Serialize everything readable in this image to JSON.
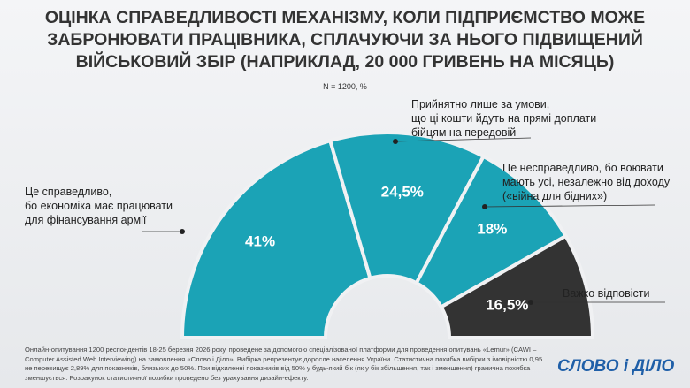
{
  "chart_data": {
    "type": "pie",
    "semicircle": true,
    "title": "ОЦІНКА СПРАВЕДЛИВОСТІ МЕХАНІЗМУ, КОЛИ ПІДПРИЄМСТВО МОЖЕ ЗАБРОНЮВАТИ ПРАЦІВНИКА, СПЛАЧУЮЧИ ЗА НЬОГО ПІДВИЩЕНИЙ ВІЙСЬКОВИЙ ЗБІР (НАПРИКЛАД, 20 000 ГРИВЕНЬ НА МІСЯЦЬ)",
    "subtitle": "N = 1200, %",
    "categories": [
      "Це справедливо,\nбо економіка має працювати\nдля фінансування армії",
      "Прийнятно лише за умови,\nщо ці кошти йдуть на прямі доплати\nбійцям на передовій",
      "Це несправедливо, бо воювати\nмають усі, незалежно від доходу\n(«війна для бідних»)",
      "Важко відповісти"
    ],
    "values": [
      41,
      24.5,
      18,
      16.5
    ],
    "value_labels": [
      "41%",
      "24,5%",
      "18%",
      "16,5%"
    ],
    "colors": [
      "#1ba3b6",
      "#1ba3b6",
      "#1ba3b6",
      "#333333"
    ],
    "footnote": "Онлайн-опитування 1200 респондентів 18-25 березня 2026 року, проведене за допомогою спеціалізованої платформи для проведення опитувань «Lemur» (CAWI – Computer Assisted Web Interviewing) на замовлення «Слово і Діло». Вибірка репрезентує доросле населення України. Статистична похибка вибірки з імовірністю 0,95 не перевищує 2,89% для показників, близьких до 50%. При відхиленні показників від 50% у будь-який бік (як у бік збільшення, так і зменшення) гранична похибка зменшується. Розрахунок статистичної похибки проведено без урахування дизайн-ефекту.",
    "logo": "СЛОВО і ДІЛО"
  }
}
